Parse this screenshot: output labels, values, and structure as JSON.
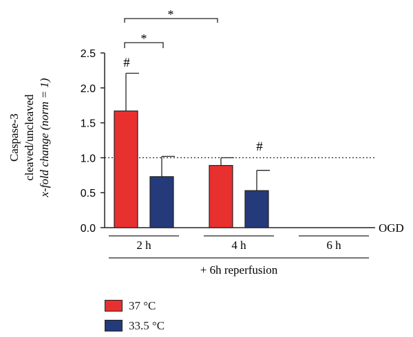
{
  "chart_data": {
    "type": "bar",
    "ylabel_lines": [
      "Caspase-3",
      "cleaved/uncleaved",
      "x-fold change (norm = 1)"
    ],
    "ylim": [
      0,
      2.5
    ],
    "yticks": [
      "0.0",
      "0.5",
      "1.0",
      "1.5",
      "2.0",
      "2.5"
    ],
    "reference_line": 1.0,
    "baseline_label": "OGD",
    "categories": [
      "2 h",
      "4 h",
      "6 h"
    ],
    "group_label": "+ 6h reperfusion",
    "series": [
      {
        "name": "37 °C",
        "color": "#e8302f",
        "values": [
          1.67,
          0.89,
          null
        ],
        "errors": [
          0.54,
          0.11,
          null
        ]
      },
      {
        "name": "33.5 °C",
        "color": "#243a7a",
        "values": [
          0.73,
          0.53,
          null
        ],
        "errors": [
          0.29,
          0.29,
          null
        ]
      }
    ],
    "annotations": {
      "hash_marks": [
        "#",
        "#"
      ],
      "significance_stars": [
        "*",
        "*"
      ]
    }
  }
}
